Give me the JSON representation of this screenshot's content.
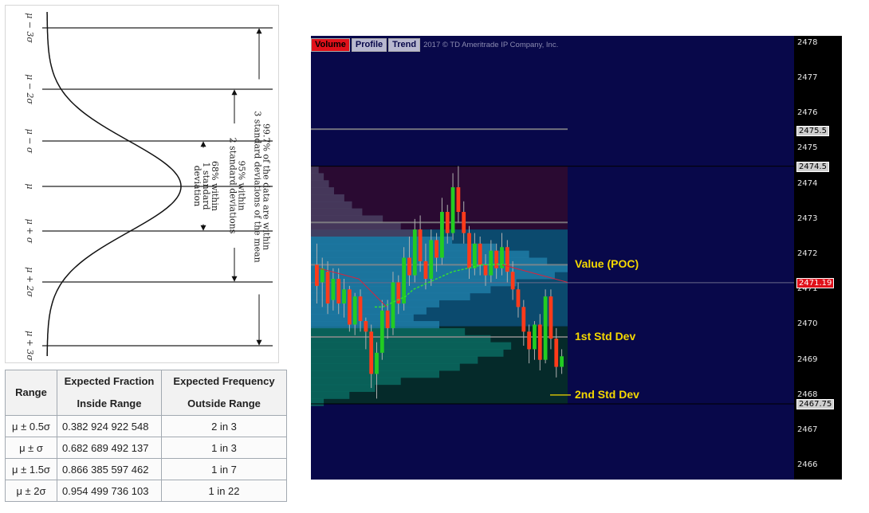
{
  "bell_figure": {
    "sigma_labels": [
      "μ − 3σ",
      "μ − 2σ",
      "μ − σ",
      "μ",
      "μ + σ",
      "μ + 2σ",
      "μ + 3σ"
    ],
    "range_annotations": [
      {
        "lines": [
          "68% within",
          "1 standard",
          "deviation"
        ]
      },
      {
        "lines": [
          "95% within",
          "2 standard deviations"
        ]
      },
      {
        "lines": [
          "99.7% of the data are within",
          "3 standard deviations of the mean"
        ]
      }
    ]
  },
  "table": {
    "headers": [
      [
        "Range"
      ],
      [
        "Expected Fraction",
        "Inside Range"
      ],
      [
        "Expected Frequency",
        "Outside Range"
      ]
    ],
    "rows": [
      [
        "μ ± 0.5σ",
        "0.382 924 922 548",
        "2 in 3"
      ],
      [
        "μ ± σ",
        "0.682 689 492 137",
        "1 in 3"
      ],
      [
        "μ ± 1.5σ",
        "0.866 385 597 462",
        "1 in 7"
      ],
      [
        "μ ± 2σ",
        "0.954 499 736 103",
        "1 in 22"
      ]
    ]
  },
  "chart_data": {
    "type": "line",
    "subtype": "candlestick-with-volume-profile",
    "tabs": [
      {
        "label": "Volume",
        "active": true
      },
      {
        "label": "Profile",
        "active": false
      },
      {
        "label": "Trend",
        "active": false
      }
    ],
    "copyright": "2017 © TD Ameritrade IP Company, Inc.",
    "y_axis": {
      "ticks": [
        2466,
        2467,
        2468,
        2469,
        2470,
        2471,
        2472,
        2473,
        2474,
        2475,
        2476,
        2477,
        2478
      ],
      "ylim": [
        2465.6,
        2478.2
      ]
    },
    "price_tags": [
      {
        "label": "2475.5",
        "value": 2475.5,
        "highlight": false
      },
      {
        "label": "2474.5",
        "value": 2474.5,
        "highlight": false
      },
      {
        "label": "2471.19",
        "value": 2471.19,
        "highlight": true
      },
      {
        "label": "2467.75",
        "value": 2467.75,
        "highlight": false
      }
    ],
    "annotations": [
      {
        "text": "Value (POC)",
        "value": 2471.7
      },
      {
        "text": "1st Std Dev",
        "value": 2469.65
      },
      {
        "text": "2nd Std Dev",
        "value": 2468.0
      }
    ],
    "reference_lines": {
      "grey": [
        2475.55,
        2472.9,
        2471.7,
        2469.65
      ],
      "band_top": 2474.5,
      "band_bottom": 2467.75,
      "last_price": 2471.19
    },
    "candles": [
      [
        2471.7,
        2471.1,
        2472.3,
        2470.6
      ],
      [
        2471.2,
        2471.6,
        2471.9,
        2470.5
      ],
      [
        2471.5,
        2470.6,
        2471.8,
        2470.3
      ],
      [
        2470.7,
        2471.3,
        2471.6,
        2470.4
      ],
      [
        2471.3,
        2470.6,
        2471.6,
        2470.3
      ],
      [
        2470.6,
        2471.0,
        2471.3,
        2470.2
      ],
      [
        2471.0,
        2470.0,
        2471.1,
        2469.8
      ],
      [
        2470.0,
        2470.8,
        2470.9,
        2469.7
      ],
      [
        2470.8,
        2470.1,
        2471.0,
        2469.8
      ],
      [
        2470.1,
        2469.8,
        2470.2,
        2469.3
      ],
      [
        2469.8,
        2468.6,
        2470.0,
        2468.2
      ],
      [
        2468.6,
        2469.2,
        2469.5,
        2467.9
      ],
      [
        2469.2,
        2470.4,
        2470.7,
        2469.0
      ],
      [
        2470.4,
        2469.9,
        2470.7,
        2469.6
      ],
      [
        2469.9,
        2471.2,
        2471.5,
        2469.7
      ],
      [
        2471.2,
        2470.6,
        2471.4,
        2470.3
      ],
      [
        2470.6,
        2471.9,
        2472.2,
        2470.4
      ],
      [
        2471.9,
        2471.4,
        2472.5,
        2471.1
      ],
      [
        2471.4,
        2472.7,
        2473.0,
        2471.2
      ],
      [
        2472.7,
        2471.8,
        2473.1,
        2471.5
      ],
      [
        2471.8,
        2471.3,
        2472.3,
        2471.0
      ],
      [
        2471.3,
        2472.4,
        2472.7,
        2471.1
      ],
      [
        2472.4,
        2471.9,
        2472.6,
        2471.5
      ],
      [
        2471.9,
        2473.2,
        2473.6,
        2471.7
      ],
      [
        2473.2,
        2472.6,
        2473.4,
        2472.3
      ],
      [
        2472.6,
        2473.9,
        2474.3,
        2472.4
      ],
      [
        2473.9,
        2473.2,
        2474.5,
        2472.9
      ],
      [
        2473.2,
        2472.6,
        2473.5,
        2472.3
      ],
      [
        2472.6,
        2471.6,
        2472.8,
        2471.3
      ],
      [
        2471.6,
        2472.3,
        2472.6,
        2471.4
      ],
      [
        2472.3,
        2471.7,
        2472.5,
        2471.4
      ],
      [
        2471.7,
        2471.4,
        2472.0,
        2471.1
      ],
      [
        2471.4,
        2472.1,
        2472.4,
        2471.2
      ],
      [
        2472.1,
        2471.6,
        2472.3,
        2471.3
      ],
      [
        2471.6,
        2472.2,
        2472.6,
        2471.4
      ],
      [
        2472.2,
        2471.5,
        2472.4,
        2471.2
      ],
      [
        2471.5,
        2471.0,
        2471.8,
        2470.7
      ],
      [
        2471.0,
        2470.5,
        2471.2,
        2470.2
      ],
      [
        2470.5,
        2469.8,
        2470.7,
        2469.4
      ],
      [
        2469.8,
        2469.3,
        2470.0,
        2468.9
      ],
      [
        2469.3,
        2470.0,
        2470.1,
        2469.0
      ],
      [
        2470.0,
        2469.0,
        2470.3,
        2468.7
      ],
      [
        2469.0,
        2470.8,
        2471.0,
        2468.9
      ],
      [
        2470.8,
        2469.6,
        2471.0,
        2469.3
      ],
      [
        2469.6,
        2468.8,
        2469.9,
        2468.5
      ],
      [
        2468.8,
        2469.1,
        2469.3,
        2468.6
      ]
    ],
    "vwap_line": [
      2470.5,
      2470.5,
      2470.6,
      2470.7,
      2470.8,
      2471.0,
      2471.1,
      2471.2,
      2471.3,
      2471.4,
      2471.5,
      2471.55,
      2471.6,
      2471.65,
      2471.7,
      2471.7,
      2471.72,
      2471.7
    ],
    "profile_levels": [
      2474.5,
      2474.3,
      2474.1,
      2473.9,
      2473.7,
      2473.5,
      2473.3,
      2473.1,
      2472.9,
      2472.7,
      2472.5,
      2472.3,
      2472.1,
      2471.9,
      2471.7,
      2471.5,
      2471.3,
      2471.1,
      2470.9,
      2470.7,
      2470.5,
      2470.3,
      2470.1,
      2469.9,
      2469.7,
      2469.5,
      2469.3,
      2469.1,
      2468.9,
      2468.7,
      2468.5,
      2468.3,
      2468.1,
      2467.9
    ],
    "profile_volume": [
      0.03,
      0.05,
      0.07,
      0.09,
      0.13,
      0.16,
      0.2,
      0.28,
      0.35,
      0.42,
      0.55,
      0.72,
      0.85,
      0.92,
      1.0,
      0.95,
      0.8,
      0.7,
      0.62,
      0.5,
      0.45,
      0.4,
      0.5,
      0.6,
      0.7,
      0.78,
      0.75,
      0.65,
      0.58,
      0.5,
      0.35,
      0.25,
      0.15,
      0.05
    ]
  }
}
